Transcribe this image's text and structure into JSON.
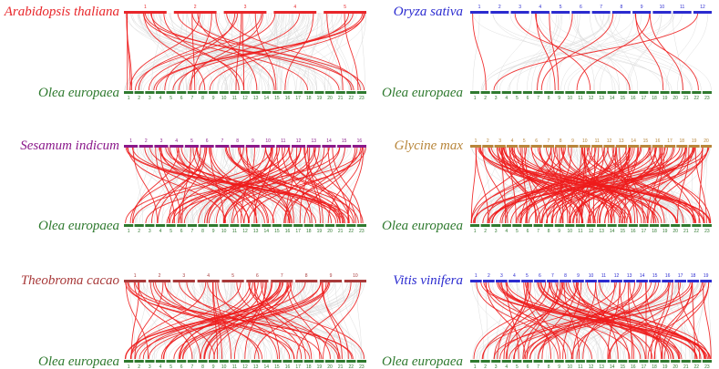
{
  "colors": {
    "background": "#ffffff",
    "synteny_highlight": "#ee1c1c",
    "synteny_background": "#d8d8d8",
    "olea": "#2f7a2f"
  },
  "panels": [
    {
      "id": "arabidopsis",
      "top_label": "Arabidopsis thaliana",
      "top_color": "#e8262a",
      "bottom_label": "Olea europaea",
      "top_chr": [
        "1",
        "2",
        "3",
        "4",
        "5"
      ],
      "bottom_chr": [
        "1",
        "2",
        "3",
        "4",
        "5",
        "6",
        "7",
        "8",
        "9",
        "10",
        "11",
        "12",
        "13",
        "14",
        "15",
        "16",
        "17",
        "18",
        "19",
        "20",
        "21",
        "22",
        "23"
      ],
      "highlight_links": 34,
      "background_links": 120
    },
    {
      "id": "oryza",
      "top_label": "Oryza sativa",
      "top_color": "#2b2bd0",
      "bottom_label": "Olea europaea",
      "top_chr": [
        "1",
        "2",
        "3",
        "4",
        "5",
        "6",
        "7",
        "8",
        "9",
        "10",
        "11",
        "12"
      ],
      "bottom_chr": [
        "1",
        "2",
        "3",
        "4",
        "5",
        "6",
        "7",
        "8",
        "9",
        "10",
        "11",
        "12",
        "13",
        "14",
        "15",
        "16",
        "17",
        "18",
        "19",
        "20",
        "21",
        "22",
        "23"
      ],
      "highlight_links": 12,
      "background_links": 45
    },
    {
      "id": "sesamum",
      "top_label": "Sesamum indicum",
      "top_color": "#8b1a8b",
      "bottom_label": "Olea europaea",
      "top_chr": [
        "1",
        "2",
        "3",
        "4",
        "5",
        "6",
        "7",
        "8",
        "9",
        "10",
        "11",
        "12",
        "13",
        "14",
        "15",
        "16"
      ],
      "bottom_chr": [
        "1",
        "2",
        "3",
        "4",
        "5",
        "6",
        "7",
        "8",
        "9",
        "10",
        "11",
        "12",
        "13",
        "14",
        "15",
        "16",
        "17",
        "18",
        "19",
        "20",
        "21",
        "22",
        "23"
      ],
      "highlight_links": 85,
      "background_links": 140
    },
    {
      "id": "glycine",
      "top_label": "Glycine max",
      "top_color": "#b8863b",
      "bottom_label": "Olea europaea",
      "top_chr": [
        "1",
        "2",
        "3",
        "4",
        "5",
        "6",
        "7",
        "8",
        "9",
        "10",
        "11",
        "12",
        "13",
        "14",
        "15",
        "16",
        "17",
        "18",
        "19",
        "20"
      ],
      "bottom_chr": [
        "1",
        "2",
        "3",
        "4",
        "5",
        "6",
        "7",
        "8",
        "9",
        "10",
        "11",
        "12",
        "13",
        "14",
        "15",
        "16",
        "17",
        "18",
        "19",
        "20",
        "21",
        "22",
        "23"
      ],
      "highlight_links": 130,
      "background_links": 150
    },
    {
      "id": "theobroma",
      "top_label": "Theobroma cacao",
      "top_color": "#a83a3a",
      "bottom_label": "Olea europaea",
      "top_chr": [
        "1",
        "2",
        "3",
        "4",
        "5",
        "6",
        "7",
        "8",
        "9",
        "10"
      ],
      "bottom_chr": [
        "1",
        "2",
        "3",
        "4",
        "5",
        "6",
        "7",
        "8",
        "9",
        "10",
        "11",
        "12",
        "13",
        "14",
        "15",
        "16",
        "17",
        "18",
        "19",
        "20",
        "21",
        "22",
        "23"
      ],
      "highlight_links": 60,
      "background_links": 130
    },
    {
      "id": "vitis",
      "top_label": "Vitis vinifera",
      "top_color": "#2b2bd0",
      "bottom_label": "Olea europaea",
      "top_chr": [
        "1",
        "2",
        "3",
        "4",
        "5",
        "6",
        "7",
        "8",
        "9",
        "10",
        "11",
        "12",
        "13",
        "14",
        "15",
        "16",
        "17",
        "18",
        "19"
      ],
      "bottom_chr": [
        "1",
        "2",
        "3",
        "4",
        "5",
        "6",
        "7",
        "8",
        "9",
        "10",
        "11",
        "12",
        "13",
        "14",
        "15",
        "16",
        "17",
        "18",
        "19",
        "20",
        "21",
        "22",
        "23"
      ],
      "highlight_links": 80,
      "background_links": 130
    }
  ]
}
